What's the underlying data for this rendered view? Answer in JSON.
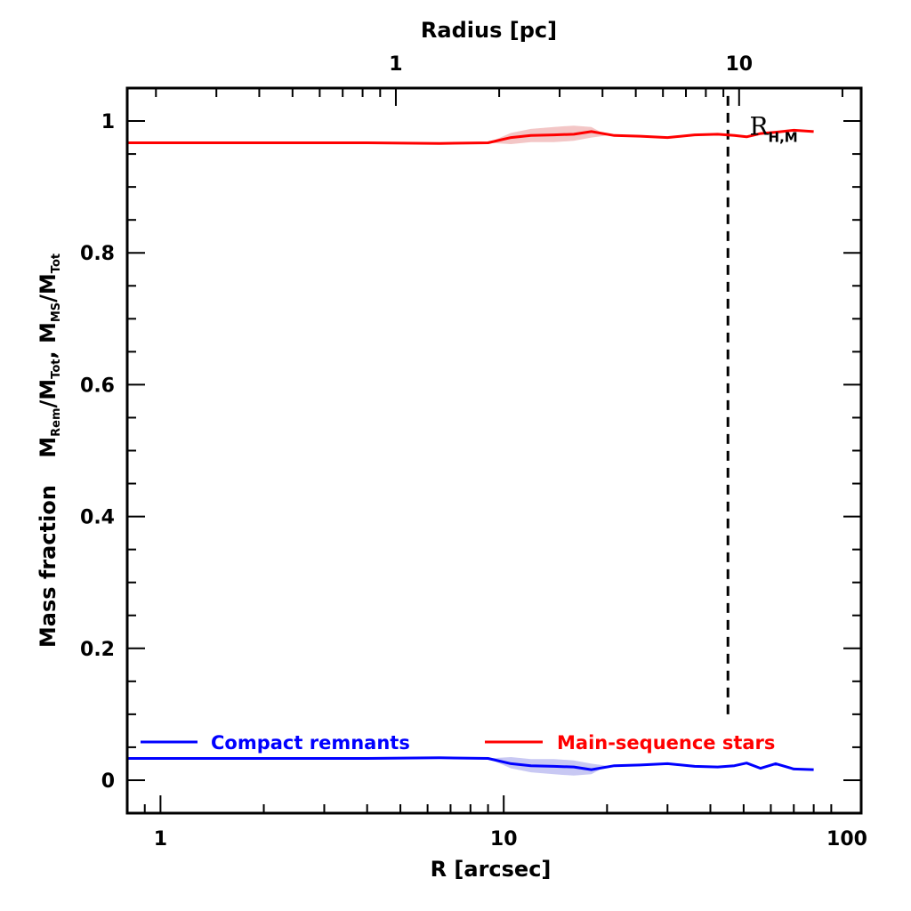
{
  "chart_data": {
    "type": "line",
    "xlabel": "R [arcsec]",
    "top_xlabel": "Radius [pc]",
    "x_scale": "log",
    "xlim": [
      0.8,
      110
    ],
    "ylim": [
      -0.05,
      1.05
    ],
    "x_ticks": [
      {
        "value": 1,
        "label": "1"
      },
      {
        "value": 10,
        "label": "10"
      },
      {
        "value": 100,
        "label": "100"
      }
    ],
    "top_ticks": [
      {
        "value": 4.85,
        "label": "1"
      },
      {
        "value": 48.5,
        "label": "10"
      }
    ],
    "y_ticks": [
      {
        "value": 0,
        "label": "0"
      },
      {
        "value": 0.2,
        "label": "0.2"
      },
      {
        "value": 0.4,
        "label": "0.4"
      },
      {
        "value": 0.6,
        "label": "0.6"
      },
      {
        "value": 0.8,
        "label": "0.8"
      },
      {
        "value": 1,
        "label": "1"
      }
    ],
    "ylabel": {
      "prefix": "Mass fraction",
      "parts": [
        {
          "main": "M",
          "sub": "Rem"
        },
        {
          "main": "/M",
          "sub": "Tot"
        },
        {
          "main": ", M",
          "sub": "MS"
        },
        {
          "main": "/M",
          "sub": "Tot"
        }
      ]
    },
    "series": [
      {
        "name": "Main-sequence stars",
        "color": "#ff0000",
        "band_color": "#f3c6c6",
        "x": [
          0.8,
          2,
          4,
          6.5,
          9,
          10.5,
          12,
          14,
          16,
          18,
          21,
          25,
          30,
          36,
          42,
          47,
          51,
          56,
          62,
          70,
          80
        ],
        "y": [
          0.967,
          0.967,
          0.967,
          0.966,
          0.967,
          0.975,
          0.978,
          0.979,
          0.98,
          0.984,
          0.978,
          0.977,
          0.975,
          0.979,
          0.98,
          0.978,
          0.976,
          0.981,
          0.983,
          0.986,
          0.984
        ],
        "band_x": [
          9,
          10.5,
          12,
          14,
          16,
          18,
          20
        ],
        "band_low": [
          0.967,
          0.965,
          0.968,
          0.968,
          0.97,
          0.975,
          0.978
        ],
        "band_high": [
          0.967,
          0.982,
          0.988,
          0.991,
          0.993,
          0.991,
          0.978
        ]
      },
      {
        "name": "Compact remnants",
        "color": "#0000ff",
        "band_color": "#c8c8f3",
        "x": [
          0.8,
          2,
          4,
          6.5,
          9,
          10.5,
          12,
          14,
          16,
          18,
          21,
          25,
          30,
          36,
          42,
          47,
          51,
          56,
          62,
          70,
          80
        ],
        "y": [
          0.033,
          0.033,
          0.033,
          0.034,
          0.033,
          0.025,
          0.022,
          0.021,
          0.02,
          0.016,
          0.022,
          0.023,
          0.025,
          0.021,
          0.02,
          0.022,
          0.026,
          0.018,
          0.025,
          0.017,
          0.016
        ],
        "band_x": [
          9,
          10.5,
          12,
          14,
          16,
          18,
          20
        ],
        "band_low": [
          0.033,
          0.018,
          0.012,
          0.009,
          0.007,
          0.009,
          0.022
        ],
        "band_high": [
          0.033,
          0.035,
          0.032,
          0.032,
          0.03,
          0.025,
          0.022
        ]
      }
    ],
    "vline": {
      "x": 45,
      "y_from": 0.1,
      "y_to": 1.05,
      "style": "dashed"
    },
    "annotation": {
      "main": "R",
      "sub": "H,M",
      "x": 52,
      "y": 0.99
    },
    "legend": {
      "placement": "bottom",
      "entries": [
        {
          "label": "Compact remnants",
          "color": "#0000ff"
        },
        {
          "label": "Main-sequence stars",
          "color": "#ff0000"
        }
      ]
    },
    "grid": false
  }
}
